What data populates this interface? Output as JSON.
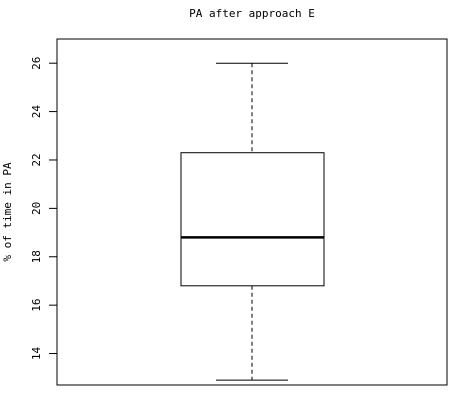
{
  "chart_data": {
    "type": "box",
    "title": "PA after approach E",
    "xlabel": "",
    "ylabel": "% of time in PA",
    "ylim": [
      12.7,
      27.0
    ],
    "yticks": [
      14,
      16,
      18,
      20,
      22,
      24,
      26
    ],
    "ytick_labels": [
      "14",
      "16",
      "18",
      "20",
      "22",
      "24",
      "26"
    ],
    "grid": false,
    "legend": "none",
    "box": {
      "min": 12.9,
      "q1": 16.8,
      "median": 18.8,
      "q3": 22.3,
      "max": 26.0
    },
    "colors": {
      "background": "#ffffff",
      "stroke": "#000000",
      "text": "#000000"
    }
  }
}
